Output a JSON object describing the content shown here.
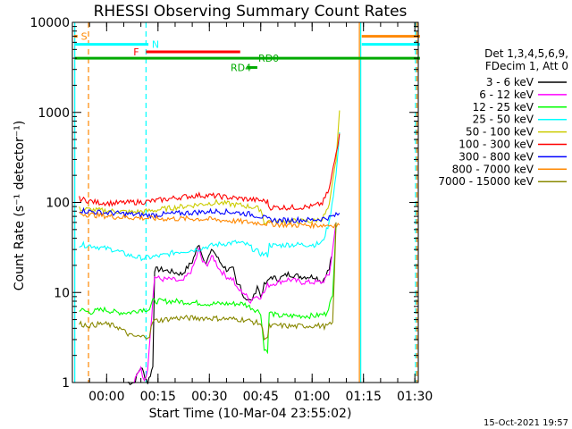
{
  "chart_data": {
    "type": "line",
    "title": "RHESSI Observing Summary Count Rates",
    "xlabel": "Start Time (10-Mar-04 23:55:02)",
    "ylabel": "Count Rate (s⁻¹ detector⁻¹)",
    "yscale": "log",
    "ylim": [
      1,
      10000
    ],
    "xlim_minutes": [
      -5,
      96
    ],
    "x_ticks": [
      {
        "m": 5,
        "label": "00:00"
      },
      {
        "m": 20,
        "label": "00:15"
      },
      {
        "m": 35,
        "label": "00:30"
      },
      {
        "m": 50,
        "label": "00:45"
      },
      {
        "m": 65,
        "label": "01:00"
      },
      {
        "m": 80,
        "label": "01:15"
      },
      {
        "m": 95,
        "label": "01:30"
      }
    ],
    "y_ticks": [
      {
        "v": 1,
        "label": "1"
      },
      {
        "v": 10,
        "label": "10"
      },
      {
        "v": 100,
        "label": "100"
      },
      {
        "v": 1000,
        "label": "1000"
      },
      {
        "v": 10000,
        "label": "10000"
      }
    ],
    "legend_header": [
      "Det 1,3,4,5,6,9,",
      "FDecim 1, Att 0"
    ],
    "legend_position": "right",
    "series": [
      {
        "name": "3 - 6 keV",
        "color": "#000000",
        "x": [
          11.0,
          13.0,
          15.0,
          17.0,
          18.5,
          19.0,
          21,
          24,
          27,
          30,
          32,
          33,
          34,
          36,
          38,
          40,
          42,
          43,
          44,
          45,
          47,
          48,
          49,
          50,
          51,
          52,
          53,
          55,
          58,
          62,
          66,
          68,
          69,
          70,
          70.6
        ],
        "y": [
          1,
          1,
          1.5,
          1,
          1.5,
          18,
          18,
          17,
          16,
          22,
          35,
          25,
          22,
          30,
          22,
          18,
          18,
          12,
          12,
          9,
          8,
          9,
          12,
          9,
          12,
          13,
          15,
          14,
          16,
          15,
          15,
          13,
          16,
          18,
          25
        ]
      },
      {
        "name": "6 - 12 keV",
        "color": "#ff00ff",
        "x": [
          13.0,
          15.0,
          16.0,
          17.0,
          19.0,
          21,
          24,
          27,
          30,
          32,
          33,
          34,
          36,
          38,
          40,
          42,
          43,
          45,
          47,
          48,
          50,
          51,
          52,
          55,
          58,
          62,
          66,
          68,
          70,
          71,
          72
        ],
        "y": [
          1,
          1.5,
          1,
          1.5,
          15,
          14,
          14,
          13,
          18,
          30,
          22,
          20,
          25,
          18,
          15,
          14,
          11,
          10,
          8,
          9,
          9,
          10,
          12,
          13,
          14,
          13,
          13,
          13,
          16,
          30,
          60
        ]
      },
      {
        "name": "12 - 25 keV",
        "color": "#00ff00",
        "x": [
          -3,
          0,
          4,
          8,
          12,
          15,
          17.5,
          18.5,
          25,
          35,
          45,
          50,
          51,
          52,
          52.5,
          55,
          60,
          66,
          69,
          71,
          72
        ],
        "y": [
          6.5,
          6,
          6.5,
          6,
          6,
          6.5,
          6.5,
          8,
          8,
          7.5,
          7.5,
          6,
          2.3,
          2.3,
          6,
          5.5,
          5.5,
          5.5,
          5.8,
          9,
          60
        ]
      },
      {
        "name": "25 - 50 keV",
        "color": "#00ffff",
        "x": [
          -3,
          1,
          4,
          7,
          10,
          13,
          16,
          19,
          22,
          25,
          28,
          31,
          34,
          37,
          40,
          43,
          46,
          48,
          50,
          52,
          52.5,
          54,
          58,
          62,
          66,
          68,
          70,
          72,
          73
        ],
        "y": [
          34,
          33,
          31,
          30,
          27,
          25,
          24,
          25,
          26,
          28,
          29,
          30,
          32,
          34,
          35,
          36,
          34,
          30,
          27,
          26,
          34,
          33,
          34,
          34,
          34,
          36,
          60,
          200,
          600
        ]
      },
      {
        "name": "50 - 100 keV",
        "color": "#cccc00",
        "x": [
          -3,
          2,
          7,
          12,
          17,
          22,
          27,
          32,
          37,
          42,
          47,
          50,
          51,
          52,
          55,
          60,
          65,
          68,
          70,
          72,
          73
        ],
        "y": [
          85,
          82,
          80,
          78,
          80,
          85,
          90,
          95,
          100,
          95,
          90,
          84,
          60,
          62,
          62,
          62,
          62,
          66,
          90,
          300,
          1050
        ]
      },
      {
        "name": "100 - 300 keV",
        "color": "#ff0000",
        "x": [
          -3,
          2,
          7,
          12,
          17,
          22,
          27,
          32,
          37,
          42,
          47,
          50,
          52,
          52.5,
          56,
          60,
          65,
          68,
          70,
          72,
          73
        ],
        "y": [
          110,
          100,
          98,
          100,
          102,
          108,
          115,
          120,
          118,
          112,
          108,
          105,
          102,
          88,
          88,
          88,
          90,
          98,
          140,
          350,
          580
        ]
      },
      {
        "name": "300 - 800 keV",
        "color": "#0000ff",
        "x": [
          -3,
          2,
          7,
          12,
          17,
          22,
          27,
          32,
          37,
          42,
          47,
          50,
          52,
          55,
          60,
          65,
          68,
          70,
          72,
          73
        ],
        "y": [
          82,
          78,
          76,
          74,
          72,
          74,
          76,
          78,
          80,
          78,
          74,
          70,
          65,
          63,
          64,
          64,
          66,
          68,
          72,
          76
        ]
      },
      {
        "name": "800 - 7000 keV",
        "color": "#ff8800",
        "x": [
          -3,
          0,
          4,
          8,
          12,
          16,
          20,
          25,
          30,
          35,
          40,
          45,
          50,
          55,
          60,
          65,
          70,
          73
        ],
        "y": [
          76,
          73,
          71,
          69,
          68,
          67,
          66,
          66,
          66,
          65,
          63,
          61,
          59,
          57,
          56,
          56,
          56,
          56
        ]
      },
      {
        "name": "7000 - 15000 keV",
        "color": "#888800",
        "x": [
          -3,
          0,
          4,
          8,
          12,
          15,
          17.5,
          18.5,
          25,
          35,
          45,
          50,
          51,
          52,
          52.5,
          55,
          60,
          66,
          69,
          71,
          72
        ],
        "y": [
          4.5,
          4.3,
          4.5,
          4.2,
          3.3,
          3.2,
          3.3,
          4.8,
          5.2,
          5.2,
          5.0,
          4.5,
          3.2,
          3.2,
          4.2,
          4.3,
          4.2,
          4.3,
          4.2,
          4.5,
          60
        ]
      }
    ],
    "flags": [
      {
        "label": "S",
        "color": "#ff8800",
        "x": [
          -4.5,
          -3.5
        ],
        "y": 7000,
        "label_x": -2.5
      },
      {
        "label": "N",
        "color": "#00ffff",
        "x": [
          -4.2,
          17.2
        ],
        "y": 5700,
        "label_x": 18.2
      },
      {
        "label": "F",
        "color": "#ff0000",
        "x": [
          16.5,
          44
        ],
        "y": 4700,
        "label_x": 12.8
      },
      {
        "label": "RD0",
        "color": "#00aa00",
        "x": [
          -4.3,
          96.5
        ],
        "y": 4000,
        "label_x": 49.3
      },
      {
        "label": "RD4",
        "color": "#00aa00",
        "x": [
          46,
          49
        ],
        "y": 3150,
        "label_x": 41.2
      }
    ],
    "right_flags": [
      {
        "color": "#ff8800",
        "x": [
          79.5,
          96.5
        ],
        "y": 7000
      },
      {
        "color": "#00ffff",
        "x": [
          79.5,
          96.5
        ],
        "y": 5700
      }
    ],
    "vlines": [
      {
        "m": -4.3,
        "color": "#00ffff",
        "dash": false
      },
      {
        "m": -0.3,
        "color": "#ff8800",
        "dash": true
      },
      {
        "m": 16.5,
        "color": "#00ffff",
        "dash": true
      },
      {
        "m": 78.8,
        "color": "#ff8800",
        "dash": false
      },
      {
        "m": 79.2,
        "color": "#00ffff",
        "dash": false
      },
      {
        "m": 95.2,
        "color": "#00ffff",
        "dash": true
      },
      {
        "m": 95.6,
        "color": "#ff8800",
        "dash": true
      }
    ],
    "timestamp": "15-Oct-2021 19:57"
  }
}
